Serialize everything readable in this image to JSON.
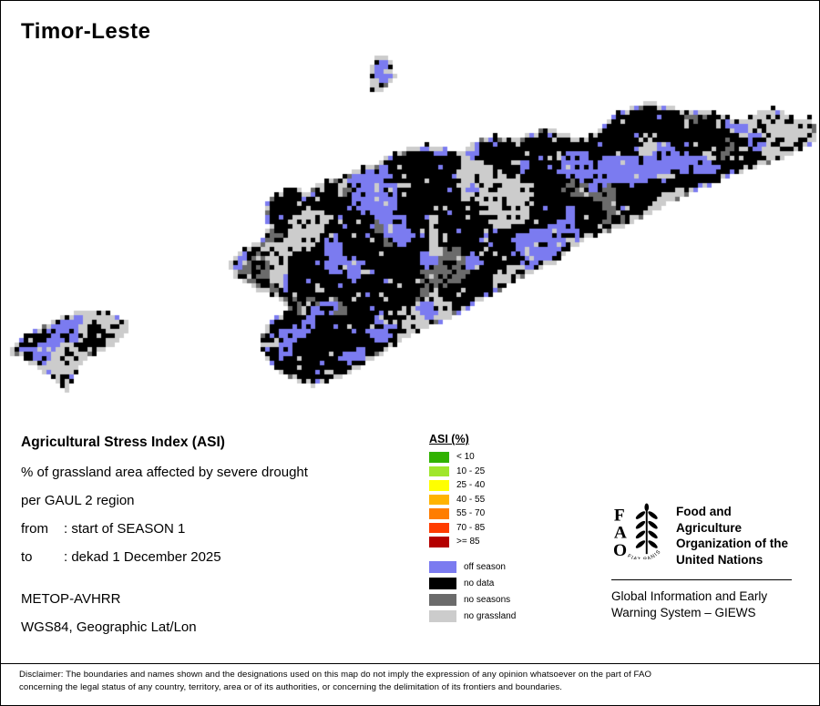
{
  "title": "Timor-Leste",
  "info": {
    "heading": "Agricultural Stress Index (ASI)",
    "desc1": "% of grassland area affected by severe drought",
    "desc2": "per GAUL 2 region",
    "from_label": "from",
    "from_value": ": start of SEASON 1",
    "to_label": "to",
    "to_value": ": dekad 1 December 2025",
    "sensor": "METOP-AVHRR",
    "projection": "WGS84, Geographic Lat/Lon"
  },
  "asi_legend": {
    "title": "ASI (%)",
    "classes": [
      {
        "label": "< 10",
        "color": "#30b200"
      },
      {
        "label": "10 - 25",
        "color": "#9fe62d"
      },
      {
        "label": "25 - 40",
        "color": "#ffff00"
      },
      {
        "label": "40 - 55",
        "color": "#ffb400"
      },
      {
        "label": "55 - 70",
        "color": "#ff7d00"
      },
      {
        "label": "70 - 85",
        "color": "#ff3c00"
      },
      {
        "label": ">= 85",
        "color": "#b40000"
      }
    ],
    "categories": [
      {
        "label": "off season",
        "color": "#7b7bf0"
      },
      {
        "label": "no data",
        "color": "#000000"
      },
      {
        "label": "no seasons",
        "color": "#6b6b6b"
      },
      {
        "label": "no grassland",
        "color": "#cccccc"
      }
    ]
  },
  "map": {
    "colors": {
      "off_season": "#7b7bf0",
      "no_data": "#000000",
      "no_seasons": "#6b6b6b",
      "no_grassland": "#cccccc"
    }
  },
  "fao": {
    "letters": [
      "F",
      "A",
      "O"
    ],
    "motto": "FIAT PANIS",
    "org_line1": "Food and Agriculture",
    "org_line2": "Organization of the",
    "org_line3": "United Nations",
    "giews_line1": "Global Information and Early",
    "giews_line2": "Warning System – GIEWS"
  },
  "disclaimer": {
    "line1": "Disclaimer: The boundaries and names shown and the designations used on this map do not imply the expression of any opinion whatsoever on the part of FAO",
    "line2": "concerning the legal status of any country, territory, area or of its authorities, or concerning the delimitation of its frontiers and boundaries."
  }
}
